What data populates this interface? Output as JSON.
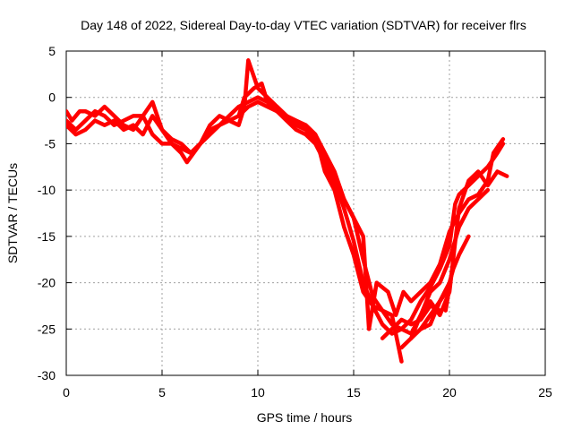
{
  "chart_data": {
    "type": "scatter",
    "title": "Day 148 of 2022, Sidereal Day-to-day VTEC variation (SDTVAR) for receiver flrs",
    "xlabel": "GPS time / hours",
    "ylabel": "SDTVAR / TECUs",
    "xlim": [
      0,
      25
    ],
    "ylim": [
      -30,
      5
    ],
    "xticks": [
      "0",
      "5",
      "10",
      "15",
      "20",
      "25"
    ],
    "yticks": [
      "5",
      "0",
      "-5",
      "-10",
      "-15",
      "-20",
      "-25",
      "-30"
    ],
    "xtick_values": [
      0,
      5,
      10,
      15,
      20,
      25
    ],
    "ytick_values": [
      5,
      0,
      -5,
      -10,
      -15,
      -20,
      -25,
      -30
    ],
    "grid": true,
    "marker": "+",
    "color": "#ff0000",
    "series": [
      {
        "name": "trace-1",
        "points": [
          [
            0,
            -2.5
          ],
          [
            0.5,
            -3.5
          ],
          [
            1,
            -2.5
          ],
          [
            1.5,
            -1.5
          ],
          [
            2,
            -2
          ],
          [
            2.5,
            -3
          ],
          [
            3,
            -2.5
          ],
          [
            3.5,
            -2
          ],
          [
            4,
            -2
          ],
          [
            4.5,
            -4
          ],
          [
            5,
            -5
          ],
          [
            5.5,
            -5
          ],
          [
            6,
            -6
          ],
          [
            6.3,
            -7
          ],
          [
            7,
            -5
          ],
          [
            7.5,
            -4
          ],
          [
            8,
            -3
          ],
          [
            8.5,
            -2.5
          ],
          [
            9,
            -2
          ],
          [
            9.5,
            -1
          ],
          [
            10,
            -0.5
          ],
          [
            10.5,
            -1
          ],
          [
            11,
            -1.5
          ],
          [
            11.5,
            -2
          ],
          [
            12,
            -3
          ],
          [
            12.5,
            -3.5
          ],
          [
            13,
            -4.5
          ],
          [
            13.5,
            -6.5
          ],
          [
            14,
            -9
          ],
          [
            14.5,
            -12
          ],
          [
            15,
            -15.5
          ],
          [
            15.5,
            -20
          ],
          [
            16,
            -22.5
          ],
          [
            16.5,
            -24.5
          ],
          [
            17,
            -25.5
          ],
          [
            17.5,
            -25
          ],
          [
            18,
            -24
          ],
          [
            18.5,
            -22
          ],
          [
            19,
            -20.5
          ],
          [
            19.5,
            -18.5
          ],
          [
            20,
            -16
          ],
          [
            20.3,
            -11.5
          ],
          [
            20.5,
            -10.5
          ],
          [
            21,
            -9.5
          ],
          [
            21.5,
            -8.5
          ],
          [
            22,
            -7.5
          ],
          [
            22.5,
            -6
          ],
          [
            22.8,
            -5
          ]
        ]
      },
      {
        "name": "trace-2",
        "points": [
          [
            0,
            -1.5
          ],
          [
            0.3,
            -2.5
          ],
          [
            0.7,
            -1.5
          ],
          [
            1,
            -1.5
          ],
          [
            1.5,
            -2
          ],
          [
            2,
            -1
          ],
          [
            2.5,
            -2
          ],
          [
            3,
            -3
          ],
          [
            3.5,
            -3.5
          ],
          [
            4,
            -2
          ],
          [
            4.5,
            -0.5
          ],
          [
            5,
            -3.5
          ],
          [
            5.5,
            -5
          ],
          [
            6,
            -5.5
          ],
          [
            6.5,
            -6
          ],
          [
            7,
            -5
          ],
          [
            7.5,
            -3.5
          ],
          [
            8,
            -3
          ],
          [
            8.5,
            -2
          ],
          [
            9,
            -1
          ],
          [
            9.5,
            -0.5
          ],
          [
            10,
            0
          ],
          [
            10.5,
            -0.5
          ],
          [
            11,
            -1.5
          ],
          [
            11.5,
            -2.5
          ],
          [
            12,
            -3.5
          ],
          [
            12.5,
            -4
          ],
          [
            13,
            -5
          ],
          [
            13.5,
            -7
          ],
          [
            14,
            -10
          ],
          [
            14.5,
            -14
          ],
          [
            15,
            -17
          ],
          [
            15.5,
            -21
          ],
          [
            16,
            -22.5
          ],
          [
            16.5,
            -23
          ],
          [
            17,
            -23.5
          ],
          [
            17.5,
            -28.5
          ]
        ]
      },
      {
        "name": "trace-3",
        "points": [
          [
            0,
            -3
          ],
          [
            0.5,
            -4
          ],
          [
            1,
            -3.5
          ],
          [
            1.5,
            -2.5
          ],
          [
            2,
            -3
          ],
          [
            2.5,
            -2.5
          ],
          [
            3,
            -3.5
          ],
          [
            3.5,
            -3
          ],
          [
            4,
            -4
          ],
          [
            4.5,
            -2
          ],
          [
            5,
            -3.5
          ],
          [
            5.5,
            -4.5
          ],
          [
            6,
            -5
          ],
          [
            6.5,
            -6
          ],
          [
            7,
            -5
          ],
          [
            7.5,
            -3
          ],
          [
            8,
            -2
          ],
          [
            8.5,
            -2.5
          ],
          [
            9,
            -3
          ],
          [
            9.3,
            -1
          ],
          [
            9.5,
            4
          ],
          [
            10,
            1
          ],
          [
            10.5,
            0
          ],
          [
            11,
            -1
          ],
          [
            11.5,
            -2
          ],
          [
            12,
            -3
          ],
          [
            12.5,
            -3
          ],
          [
            13,
            -4
          ],
          [
            13.5,
            -8
          ],
          [
            14,
            -10
          ],
          [
            14.5,
            -11
          ],
          [
            15,
            -13
          ],
          [
            15.5,
            -17.5
          ],
          [
            16,
            -21.5
          ],
          [
            16.5,
            -23
          ],
          [
            17,
            -24.5
          ],
          [
            18,
            -25.5
          ],
          [
            18.5,
            -23.5
          ],
          [
            19,
            -22
          ],
          [
            19.5,
            -23.5
          ],
          [
            20,
            -21
          ],
          [
            20.5,
            -12
          ],
          [
            21,
            -9
          ],
          [
            21.5,
            -8
          ],
          [
            22,
            -9.5
          ],
          [
            22.5,
            -8
          ],
          [
            23,
            -8.5
          ]
        ]
      },
      {
        "name": "trace-4",
        "points": [
          [
            9,
            -2
          ],
          [
            9.3,
            0
          ],
          [
            9.8,
            1
          ],
          [
            10.2,
            1.5
          ],
          [
            10.5,
            -0.5
          ],
          [
            11,
            -1
          ],
          [
            11.5,
            -2
          ],
          [
            12,
            -2.5
          ],
          [
            12.5,
            -3
          ],
          [
            13,
            -4
          ],
          [
            13.5,
            -6
          ],
          [
            14,
            -8
          ],
          [
            14.5,
            -11
          ],
          [
            15,
            -13
          ],
          [
            15.5,
            -15
          ],
          [
            15.8,
            -25
          ],
          [
            16.2,
            -20
          ],
          [
            16.8,
            -21
          ],
          [
            17.2,
            -23.5
          ],
          [
            17.6,
            -21
          ],
          [
            18,
            -22
          ],
          [
            18.5,
            -21
          ],
          [
            19,
            -20
          ],
          [
            19.5,
            -18
          ],
          [
            20,
            -14.5
          ],
          [
            20.5,
            -12.5
          ],
          [
            21,
            -11
          ],
          [
            21.5,
            -10.5
          ],
          [
            22,
            -9
          ],
          [
            22.3,
            -6
          ],
          [
            22.8,
            -4.5
          ]
        ]
      },
      {
        "name": "trace-5",
        "points": [
          [
            17.5,
            -27
          ],
          [
            18,
            -26
          ],
          [
            18.5,
            -23.5
          ],
          [
            19,
            -21
          ],
          [
            19.5,
            -20
          ],
          [
            20,
            -17.5
          ],
          [
            20.5,
            -14
          ],
          [
            21,
            -12
          ],
          [
            21.5,
            -11
          ],
          [
            22,
            -10
          ]
        ]
      },
      {
        "name": "trace-6",
        "points": [
          [
            18.5,
            -25
          ],
          [
            19,
            -23.5
          ],
          [
            19.5,
            -22
          ],
          [
            20,
            -20.5
          ],
          [
            19.8,
            -23
          ]
        ]
      },
      {
        "name": "trace-7",
        "points": [
          [
            18,
            -26
          ],
          [
            18.5,
            -25
          ],
          [
            19,
            -24.5
          ],
          [
            19.5,
            -22
          ],
          [
            20,
            -20
          ],
          [
            20.2,
            -18.5
          ],
          [
            20.5,
            -17
          ],
          [
            21,
            -15
          ]
        ]
      },
      {
        "name": "trace-8",
        "points": [
          [
            16.5,
            -26
          ],
          [
            17,
            -25
          ],
          [
            17.5,
            -24
          ],
          [
            18,
            -24.5
          ],
          [
            18.5,
            -24
          ],
          [
            19,
            -22.5
          ],
          [
            19.5,
            -23
          ]
        ]
      }
    ]
  }
}
